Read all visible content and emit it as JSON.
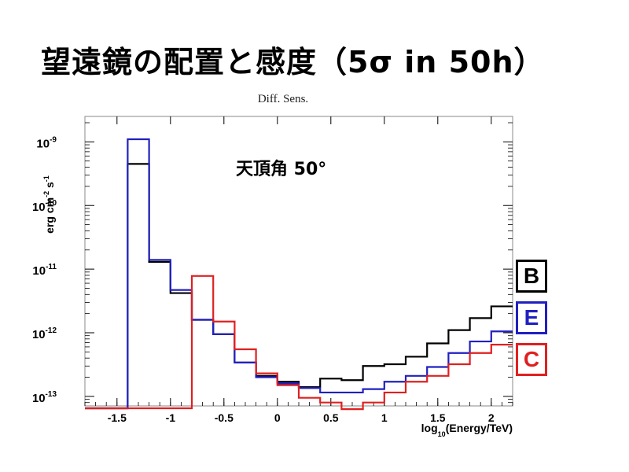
{
  "slide": {
    "title": "望遠鏡の配置と感度（5σ in 50h）"
  },
  "chart_data": {
    "type": "line",
    "subtype": "step-histogram",
    "title": "Diff. Sens.",
    "annotation": "天頂角 50°",
    "xlabel": "log10(Energy/TeV)",
    "xlabel_main": "log",
    "xlabel_sub": "10",
    "xlabel_rest": "(Energy/TeV)",
    "ylabel": "erg cm-2 s-1",
    "ylabel_parts": {
      "a": "erg cm",
      "b": "-2",
      "c": " s",
      "d": "-1"
    },
    "xlim": [
      -1.8,
      2.2
    ],
    "ylim_log10": [
      -13.15,
      -8.6
    ],
    "yscale": "log",
    "x_ticks": [
      -1.5,
      -1,
      -0.5,
      0,
      0.5,
      1,
      1.5,
      2
    ],
    "x_tick_labels": [
      "-1.5",
      "-1",
      "-0.5",
      "0",
      "0.5",
      "1",
      "1.5",
      "2"
    ],
    "y_ticks": [
      {
        "exp": -9,
        "base": "10",
        "sup": "-9"
      },
      {
        "exp": -10,
        "base": "10",
        "sup": "-10"
      },
      {
        "exp": -11,
        "base": "10",
        "sup": "-11"
      },
      {
        "exp": -12,
        "base": "10",
        "sup": "-12"
      },
      {
        "exp": -13,
        "base": "10",
        "sup": "-13"
      }
    ],
    "bin_edges": [
      -1.4,
      -1.2,
      -1.0,
      -0.8,
      -0.6,
      -0.4,
      -0.2,
      0.0,
      0.2,
      0.4,
      0.6,
      0.8,
      1.0,
      1.2,
      1.4,
      1.6,
      1.8,
      2.0,
      2.2
    ],
    "series": [
      {
        "name": "B",
        "color": "#000000",
        "values": [
          4.5e-10,
          1.3e-11,
          4.2e-12,
          1.6e-12,
          9.5e-13,
          3.4e-13,
          2.1e-13,
          1.7e-13,
          1.4e-13,
          1.9e-13,
          1.8e-13,
          3e-13,
          3.2e-13,
          4.2e-13,
          6.8e-13,
          1.1e-12,
          1.7e-12,
          2.6e-12
        ]
      },
      {
        "name": "E",
        "color": "#2020c0",
        "values": [
          1.1e-09,
          1.4e-11,
          4.7e-12,
          1.6e-12,
          9.5e-13,
          3.4e-13,
          2e-13,
          1.6e-13,
          1.35e-13,
          1.15e-13,
          1.15e-13,
          1.3e-13,
          1.7e-13,
          2.1e-13,
          2.9e-13,
          4.8e-13,
          7.3e-13,
          1.05e-12
        ]
      },
      {
        "name": "C",
        "color": "#e02020",
        "values": [
          null,
          null,
          null,
          7.8e-12,
          1.5e-12,
          5.5e-13,
          2.3e-13,
          1.5e-13,
          9.5e-14,
          8e-14,
          6.3e-14,
          8e-14,
          1.15e-13,
          1.7e-13,
          2.1e-13,
          3.2e-13,
          4.8e-13,
          6.5e-13
        ]
      }
    ],
    "legend": {
      "placement": "right"
    }
  }
}
